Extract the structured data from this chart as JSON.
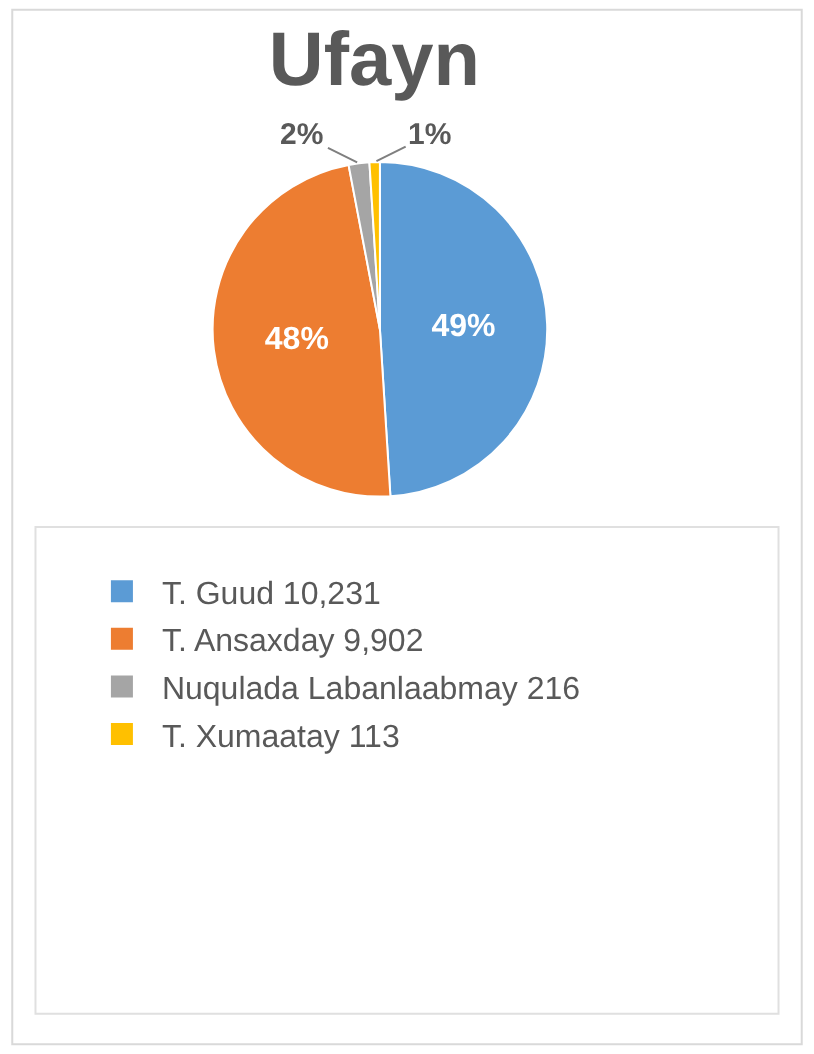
{
  "chart_data": {
    "type": "pie",
    "title": "Ufayn",
    "categories": [
      "T. Guud 10,231",
      "T. Ansaxday 9,902",
      "Nuqulada Labanlaabmay 216",
      "T. Xumaatay 113"
    ],
    "values": [
      49,
      48,
      2,
      1
    ],
    "colors": [
      "#5b9bd5",
      "#ed7d31",
      "#a5a5a5",
      "#ffc000"
    ],
    "value_labels": [
      "49%",
      "48%",
      "2%",
      "1%"
    ],
    "legend": "bottom"
  }
}
